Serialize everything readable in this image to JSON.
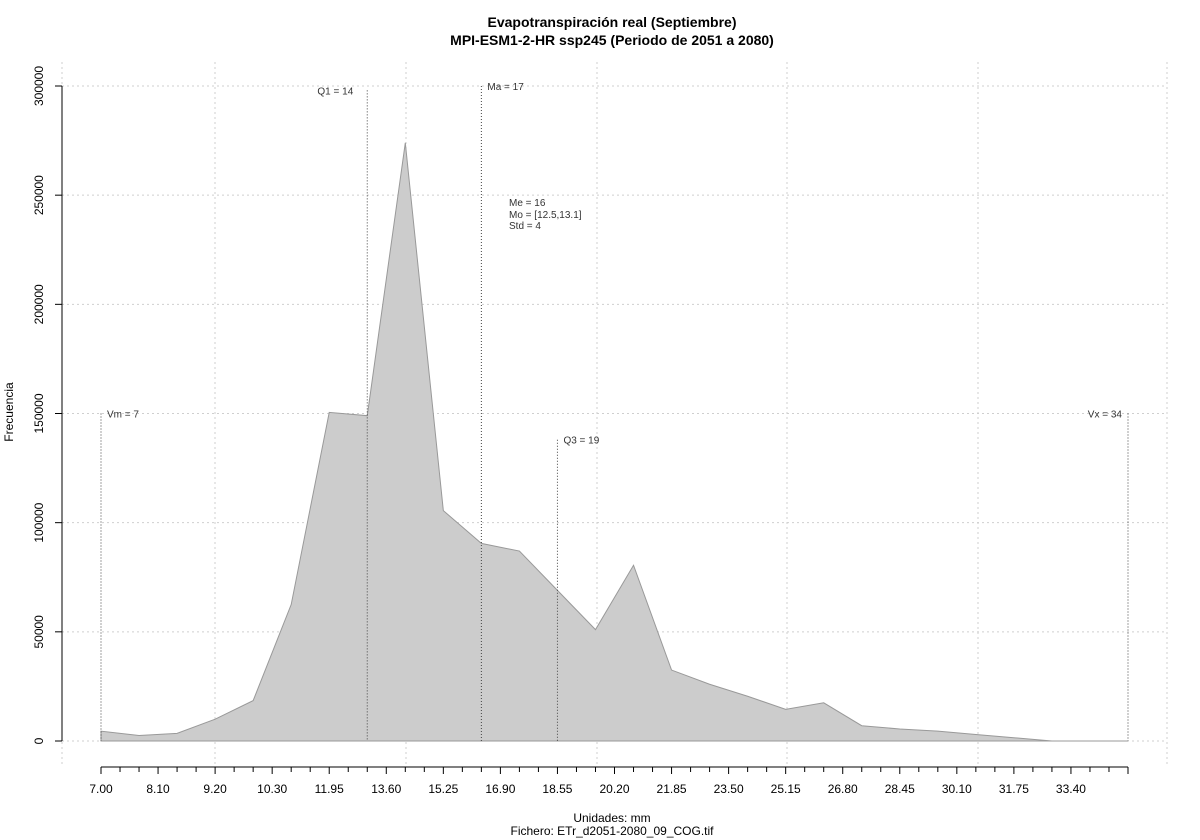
{
  "chart_data": {
    "type": "area",
    "title": "Evapotranspiración real (Septiembre)",
    "subtitle": "MPI-ESM1-2-HR ssp245 (Periodo de 2051 a 2080)",
    "xlabel": "Unidades: mm",
    "ylabel": "Frecuencia",
    "footer": "Fichero: ETr_d2051-2080_09_COG.tif",
    "xlim": [
      7.0,
      34.0
    ],
    "ylim": [
      0,
      300000
    ],
    "grid": true,
    "fill_color": "#cccccc",
    "stroke_color": "#999999",
    "x_tick_labels": [
      "7.00",
      "8.10",
      "9.20",
      "10.30",
      "11.95",
      "13.60",
      "15.25",
      "16.90",
      "18.55",
      "20.20",
      "21.85",
      "23.50",
      "25.15",
      "26.80",
      "28.45",
      "30.10",
      "31.75",
      "33.40"
    ],
    "y_ticks": [
      0,
      50000,
      100000,
      150000,
      200000,
      250000,
      300000
    ],
    "y_tick_labels": [
      "0",
      "50000",
      "100000",
      "150000",
      "200000",
      "250000",
      "300000"
    ],
    "x": [
      7.0,
      8.0,
      9.0,
      10.0,
      11.0,
      12.0,
      13.0,
      14.0,
      15.0,
      16.0,
      17.0,
      18.0,
      19.0,
      20.0,
      21.0,
      22.0,
      23.0,
      24.0,
      25.0,
      26.0,
      27.0,
      28.0,
      29.0,
      30.0,
      31.0,
      32.0,
      33.0,
      34.0
    ],
    "y": [
      4500,
      2500,
      3500,
      10000,
      18500,
      62500,
      150500,
      149000,
      274000,
      105500,
      90500,
      87000,
      69000,
      51000,
      80500,
      32500,
      26000,
      20500,
      14500,
      17500,
      7000,
      5500,
      4500,
      3000,
      1500,
      0,
      0,
      0
    ],
    "vlines": [
      {
        "label": "Vm = 7",
        "x": 7.0,
        "top": 150000
      },
      {
        "label": "Q1 = 14",
        "x": 14.0,
        "top": 298000
      },
      {
        "label": "Ma = 17",
        "x": 17.0,
        "top": 300000
      },
      {
        "label": "Q3 = 19",
        "x": 19.0,
        "top": 138000
      },
      {
        "label": "Vx = 34",
        "x": 34.0,
        "top": 150000
      }
    ],
    "stats": [
      "Me = 16",
      "Mo = [12.5,13.1]",
      "Std = 4"
    ]
  }
}
